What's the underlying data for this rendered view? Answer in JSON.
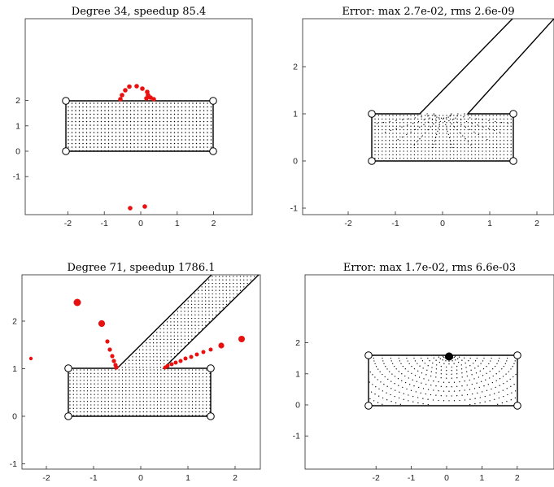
{
  "panels": [
    {
      "title": "Degree 34, speedup 85.4",
      "xticks": [
        {
          "v": -2,
          "t": "-2"
        },
        {
          "v": -1,
          "t": "-1"
        },
        {
          "v": 0,
          "t": "0"
        },
        {
          "v": 1,
          "t": "1"
        },
        {
          "v": 2,
          "t": "2"
        }
      ],
      "yticks": [
        {
          "v": -1,
          "t": "-1"
        },
        {
          "v": 0,
          "t": "0"
        },
        {
          "v": 1,
          "t": "1"
        },
        {
          "v": 2,
          "t": "2"
        }
      ]
    },
    {
      "title": "Error:  max 2.7e-02, rms 2.6e-09",
      "xticks": [
        {
          "v": -2,
          "t": "-2"
        },
        {
          "v": -1,
          "t": "-1"
        },
        {
          "v": 0,
          "t": "0"
        },
        {
          "v": 1,
          "t": "1"
        },
        {
          "v": 2,
          "t": "2"
        }
      ],
      "yticks": [
        {
          "v": -1,
          "t": "-1"
        },
        {
          "v": 0,
          "t": "0"
        },
        {
          "v": 1,
          "t": "1"
        },
        {
          "v": 2,
          "t": "2"
        }
      ]
    },
    {
      "title": "Degree 71, speedup 1786.1",
      "xticks": [
        {
          "v": -2,
          "t": "-2"
        },
        {
          "v": -1,
          "t": "-1"
        },
        {
          "v": 0,
          "t": "0"
        },
        {
          "v": 1,
          "t": "1"
        },
        {
          "v": 2,
          "t": "2"
        }
      ],
      "yticks": [
        {
          "v": -1,
          "t": "-1"
        },
        {
          "v": 0,
          "t": "0"
        },
        {
          "v": 1,
          "t": "1"
        },
        {
          "v": 2,
          "t": "2"
        }
      ]
    },
    {
      "title": "Error:  max 1.7e-02, rms 6.6e-03",
      "xticks": [
        {
          "v": -2,
          "t": "-2"
        },
        {
          "v": -1,
          "t": "-1"
        },
        {
          "v": 0,
          "t": "0"
        },
        {
          "v": 1,
          "t": "1"
        },
        {
          "v": 2,
          "t": "2"
        }
      ],
      "yticks": [
        {
          "v": -1,
          "t": "-1"
        },
        {
          "v": 0,
          "t": "0"
        },
        {
          "v": 1,
          "t": "1"
        },
        {
          "v": 2,
          "t": "2"
        }
      ]
    }
  ],
  "colors": {
    "poles": "#e8110f",
    "outline": "#000000",
    "dots": "#000000"
  }
}
